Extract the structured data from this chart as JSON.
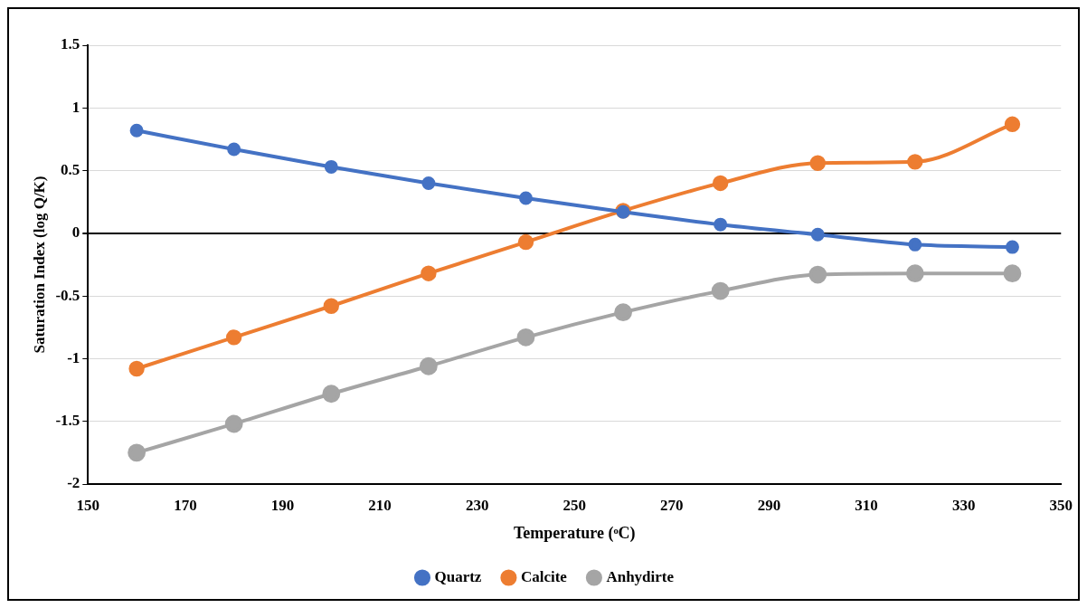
{
  "chart_data": {
    "type": "line",
    "xlabel": "Temperature (ᵒC)",
    "ylabel": "Saturation Index (log Q/K)",
    "x": [
      160,
      180,
      200,
      220,
      240,
      260,
      280,
      300,
      320,
      340
    ],
    "series": [
      {
        "name": "Quartz",
        "color": "#4472c4",
        "values": [
          0.82,
          0.67,
          0.53,
          0.4,
          0.28,
          0.17,
          0.07,
          -0.01,
          -0.09,
          -0.11
        ]
      },
      {
        "name": "Calcite",
        "color": "#ed7d31",
        "values": [
          -1.08,
          -0.83,
          -0.58,
          -0.32,
          -0.07,
          0.18,
          0.4,
          0.56,
          0.57,
          0.87
        ]
      },
      {
        "name": "Anhydirte",
        "color": "#a5a5a5",
        "values": [
          -1.75,
          -1.52,
          -1.28,
          -1.06,
          -0.83,
          -0.63,
          -0.46,
          -0.33,
          -0.32,
          -0.32
        ]
      }
    ],
    "xlim": [
      150,
      350
    ],
    "xticks": [
      150,
      170,
      190,
      210,
      230,
      250,
      270,
      290,
      310,
      330,
      350
    ],
    "ylim": [
      -2,
      1.5
    ],
    "yticks": [
      -2,
      -1.5,
      -1,
      -0.5,
      0,
      0.5,
      1,
      1.5
    ],
    "grid": "y",
    "legend": "bottom",
    "marker": "circle",
    "line_style": "solid"
  }
}
